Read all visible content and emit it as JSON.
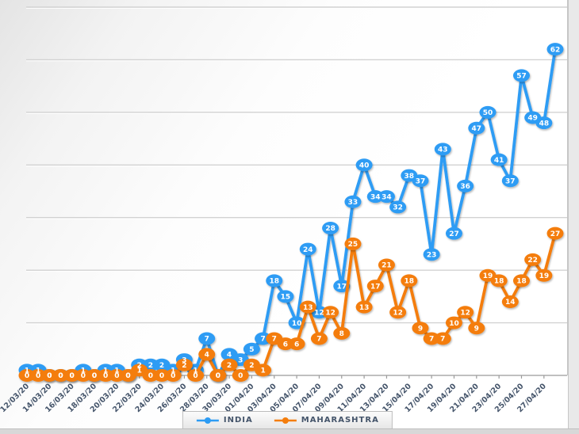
{
  "chart_data": {
    "type": "line",
    "title": "",
    "xlabel": "",
    "ylabel": "",
    "x_tick_labels": [
      "12/03/20",
      "14/03/20",
      "16/03/20",
      "18/03/20",
      "20/03/20",
      "22/03/20",
      "24/03/20",
      "26/03/20",
      "28/03/20",
      "30/03/20",
      "01/04/20",
      "03/04/20",
      "05/04/20",
      "07/04/20",
      "09/04/20",
      "11/04/20",
      "13/04/20",
      "15/04/20",
      "17/04/20",
      "19/04/20",
      "21/04/20",
      "23/04/20",
      "25/04/20",
      "27/04/20"
    ],
    "points_per_tick": 2,
    "ylim": [
      0,
      70
    ],
    "gridline_step": 10,
    "y_axis_labels_visible": false,
    "grid": true,
    "legend_position": "bottom",
    "data_labels": "bubble-on-point",
    "series": [
      {
        "name": "INDIA",
        "color": "#2d9cf4",
        "values": [
          1,
          1,
          0,
          0,
          0,
          1,
          0,
          1,
          1,
          0,
          2,
          2,
          2,
          1,
          3,
          1,
          7,
          0,
          4,
          3,
          5,
          7,
          18,
          15,
          10,
          24,
          12,
          28,
          17,
          33,
          40,
          34,
          34,
          32,
          38,
          37,
          23,
          43,
          27,
          36,
          47,
          50,
          41,
          37,
          57,
          49,
          48,
          62
        ]
      },
      {
        "name": "MAHARASHTRA",
        "color": "#f47d0c",
        "values": [
          0,
          0,
          0,
          0,
          0,
          0,
          0,
          0,
          0,
          0,
          1,
          0,
          0,
          0,
          2,
          0,
          4,
          0,
          2,
          0,
          2,
          1,
          7,
          6,
          6,
          13,
          7,
          12,
          8,
          25,
          13,
          17,
          21,
          12,
          18,
          9,
          7,
          7,
          10,
          12,
          9,
          19,
          18,
          14,
          18,
          22,
          19,
          27
        ]
      }
    ],
    "style": {
      "axis_color": "#9b9b9b",
      "gridline_color": "#d2d2d2",
      "tick_label_color": "#44546a",
      "bubble_label_color": "#ffffff"
    }
  }
}
